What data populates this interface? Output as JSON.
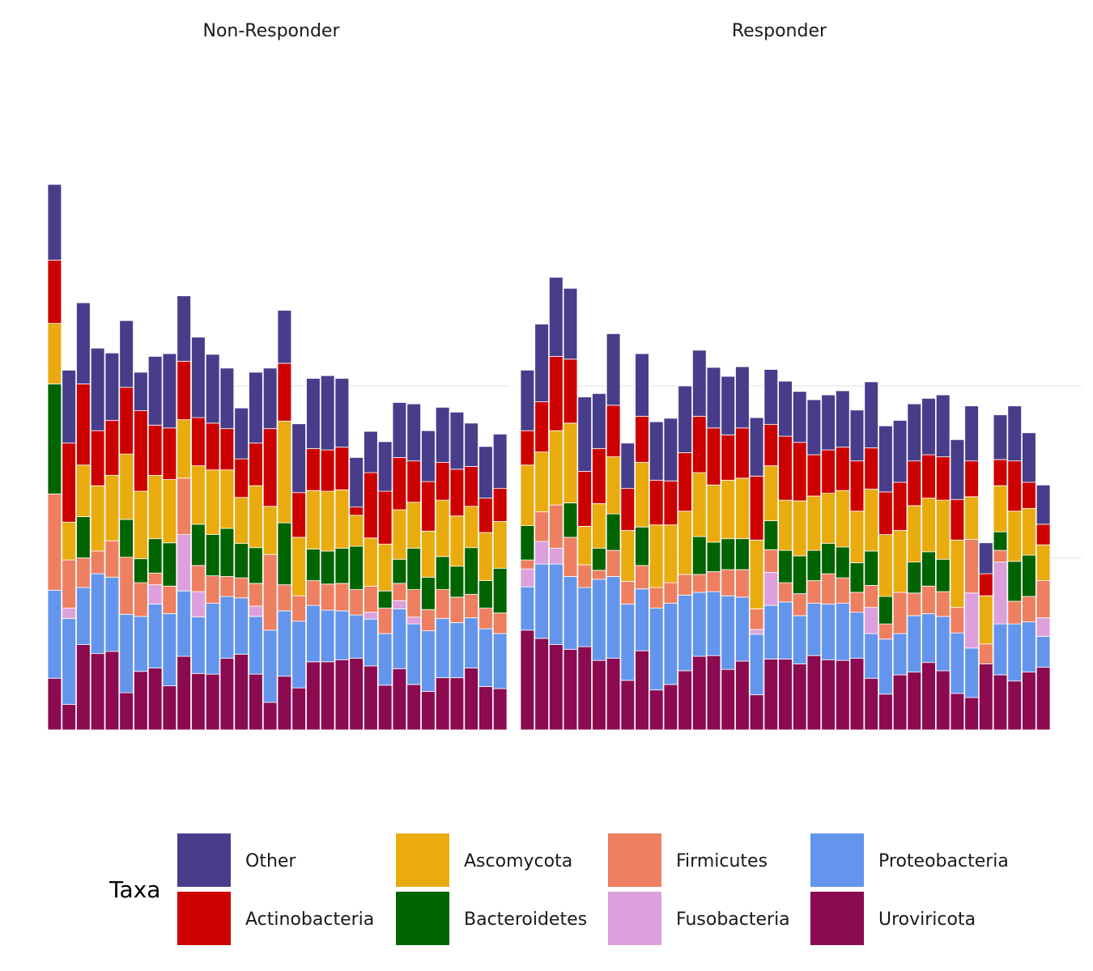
{
  "chart_data": {
    "type": "bar",
    "stacked": true,
    "grid": true,
    "legend_position": "bottom",
    "legend": {
      "title": "Taxa",
      "entries": [
        {
          "name": "Other",
          "color": "#483D8B"
        },
        {
          "name": "Actinobacteria",
          "color": "#CD0000"
        },
        {
          "name": "Ascomycota",
          "color": "#EAAB0F"
        },
        {
          "name": "Bacteroidetes",
          "color": "#006400"
        },
        {
          "name": "Firmicutes",
          "color": "#EE7F60"
        },
        {
          "name": "Fusobacteria",
          "color": "#DDA0DD"
        },
        {
          "name": "Proteobacteria",
          "color": "#6495ED"
        },
        {
          "name": "Uroviricota",
          "color": "#8B0A50"
        }
      ]
    },
    "stack_order_bottom_to_top": [
      "Uroviricota",
      "Proteobacteria",
      "Fusobacteria",
      "Firmicutes",
      "Bacteroidetes",
      "Ascomycota",
      "Actinobacteria",
      "Other"
    ],
    "ylim": [
      0,
      900
    ],
    "gridlines_y": [
      250,
      500
    ],
    "panels": [
      {
        "title": "Non-Responder",
        "bars": [
          [
            75,
            128,
            0,
            140,
            160,
            88,
            92,
            110
          ],
          [
            37,
            125,
            15,
            70,
            0,
            55,
            115,
            106
          ],
          [
            124,
            83,
            0,
            43,
            60,
            75,
            118,
            118
          ],
          [
            111,
            116,
            0,
            33,
            0,
            95,
            80,
            120
          ],
          [
            114,
            108,
            0,
            53,
            0,
            95,
            80,
            98
          ],
          [
            54,
            114,
            0,
            83,
            55,
            95,
            97,
            97
          ],
          [
            85,
            80,
            0,
            49,
            35,
            98,
            117,
            56
          ],
          [
            90,
            93,
            28,
            17,
            50,
            92,
            73,
            100
          ],
          [
            64,
            105,
            0,
            40,
            63,
            92,
            75,
            108
          ],
          [
            107,
            95,
            82,
            82,
            0,
            85,
            85,
            95
          ],
          [
            82,
            82,
            37,
            38,
            60,
            85,
            70,
            117
          ],
          [
            81,
            103,
            0,
            40,
            60,
            94,
            68,
            100
          ],
          [
            104,
            90,
            0,
            29,
            70,
            85,
            60,
            88
          ],
          [
            110,
            82,
            0,
            29,
            50,
            67,
            56,
            74
          ],
          [
            81,
            84,
            15,
            33,
            52,
            90,
            62,
            103
          ],
          [
            40,
            105,
            0,
            110,
            0,
            70,
            113,
            88
          ],
          [
            78,
            95,
            0,
            38,
            90,
            148,
            84,
            77
          ],
          [
            61,
            97,
            0,
            37,
            0,
            85,
            65,
            100
          ],
          [
            99,
            82,
            0,
            36,
            46,
            85,
            61,
            102
          ],
          [
            99,
            75,
            0,
            38,
            48,
            87,
            60,
            108
          ],
          [
            102,
            71,
            0,
            40,
            51,
            85,
            62,
            100
          ],
          [
            104,
            63,
            0,
            37,
            63,
            45,
            12,
            72
          ],
          [
            93,
            68,
            10,
            38,
            0,
            70,
            95,
            60
          ],
          [
            65,
            75,
            0,
            37,
            25,
            68,
            77,
            72
          ],
          [
            89,
            87,
            12,
            25,
            35,
            72,
            76,
            80
          ],
          [
            66,
            88,
            10,
            40,
            60,
            67,
            60,
            83
          ],
          [
            56,
            88,
            0,
            31,
            47,
            67,
            72,
            74
          ],
          [
            76,
            86,
            0,
            42,
            48,
            82,
            55,
            80
          ],
          [
            76,
            80,
            0,
            37,
            45,
            73,
            68,
            83
          ],
          [
            90,
            73,
            0,
            34,
            68,
            60,
            58,
            63
          ],
          [
            63,
            84,
            0,
            30,
            40,
            70,
            50,
            75
          ],
          [
            60,
            80,
            0,
            30,
            65,
            68,
            48,
            79
          ]
        ]
      },
      {
        "title": "Responder",
        "bars": [
          [
            145,
            63,
            26,
            13,
            50,
            88,
            50,
            88
          ],
          [
            133,
            108,
            33,
            43,
            0,
            87,
            73,
            113
          ],
          [
            124,
            117,
            23,
            63,
            0,
            108,
            108,
            115
          ],
          [
            117,
            106,
            0,
            57,
            50,
            116,
            93,
            103
          ],
          [
            121,
            86,
            0,
            33,
            0,
            56,
            80,
            108
          ],
          [
            101,
            118,
            0,
            13,
            32,
            65,
            80,
            80
          ],
          [
            104,
            119,
            0,
            38,
            53,
            83,
            75,
            104
          ],
          [
            72,
            111,
            0,
            33,
            0,
            74,
            61,
            66
          ],
          [
            115,
            90,
            0,
            34,
            56,
            94,
            67,
            91
          ],
          [
            58,
            119,
            0,
            30,
            0,
            91,
            65,
            85
          ],
          [
            66,
            118,
            0,
            30,
            0,
            84,
            64,
            91
          ],
          [
            86,
            110,
            0,
            30,
            0,
            92,
            85,
            97
          ],
          [
            107,
            93,
            0,
            26,
            55,
            93,
            82,
            96
          ],
          [
            108,
            93,
            0,
            29,
            43,
            83,
            83,
            88
          ],
          [
            88,
            107,
            0,
            38,
            45,
            85,
            66,
            85
          ],
          [
            100,
            93,
            0,
            40,
            45,
            88,
            73,
            89
          ],
          [
            51,
            88,
            7,
            30,
            0,
            100,
            93,
            85
          ],
          [
            103,
            78,
            48,
            33,
            42,
            80,
            60,
            80
          ],
          [
            103,
            83,
            0,
            28,
            47,
            73,
            93,
            80
          ],
          [
            96,
            70,
            0,
            32,
            55,
            80,
            85,
            74
          ],
          [
            108,
            76,
            0,
            33,
            44,
            79,
            60,
            80
          ],
          [
            102,
            81,
            0,
            44,
            44,
            73,
            63,
            80
          ],
          [
            101,
            83,
            0,
            37,
            45,
            82,
            63,
            82
          ],
          [
            104,
            67,
            0,
            29,
            43,
            75,
            73,
            74
          ],
          [
            75,
            65,
            38,
            32,
            50,
            90,
            60,
            96
          ],
          [
            52,
            80,
            0,
            22,
            40,
            90,
            62,
            96
          ],
          [
            80,
            60,
            0,
            60,
            0,
            90,
            70,
            90
          ],
          [
            84,
            82,
            0,
            33,
            45,
            82,
            65,
            83
          ],
          [
            98,
            71,
            0,
            40,
            50,
            78,
            63,
            82
          ],
          [
            86,
            79,
            0,
            36,
            47,
            86,
            63,
            90
          ],
          [
            53,
            88,
            0,
            37,
            0,
            98,
            59,
            87
          ],
          [
            47,
            72,
            80,
            78,
            0,
            62,
            52,
            80
          ],
          [
            96,
            0,
            0,
            29,
            0,
            70,
            32,
            45
          ],
          [
            80,
            74,
            90,
            17,
            27,
            67,
            38,
            65
          ],
          [
            71,
            83,
            0,
            33,
            58,
            73,
            73,
            80
          ],
          [
            84,
            73,
            0,
            37,
            60,
            68,
            38,
            72
          ],
          [
            91,
            45,
            27,
            54,
            0,
            52,
            30,
            57
          ]
        ]
      }
    ]
  }
}
